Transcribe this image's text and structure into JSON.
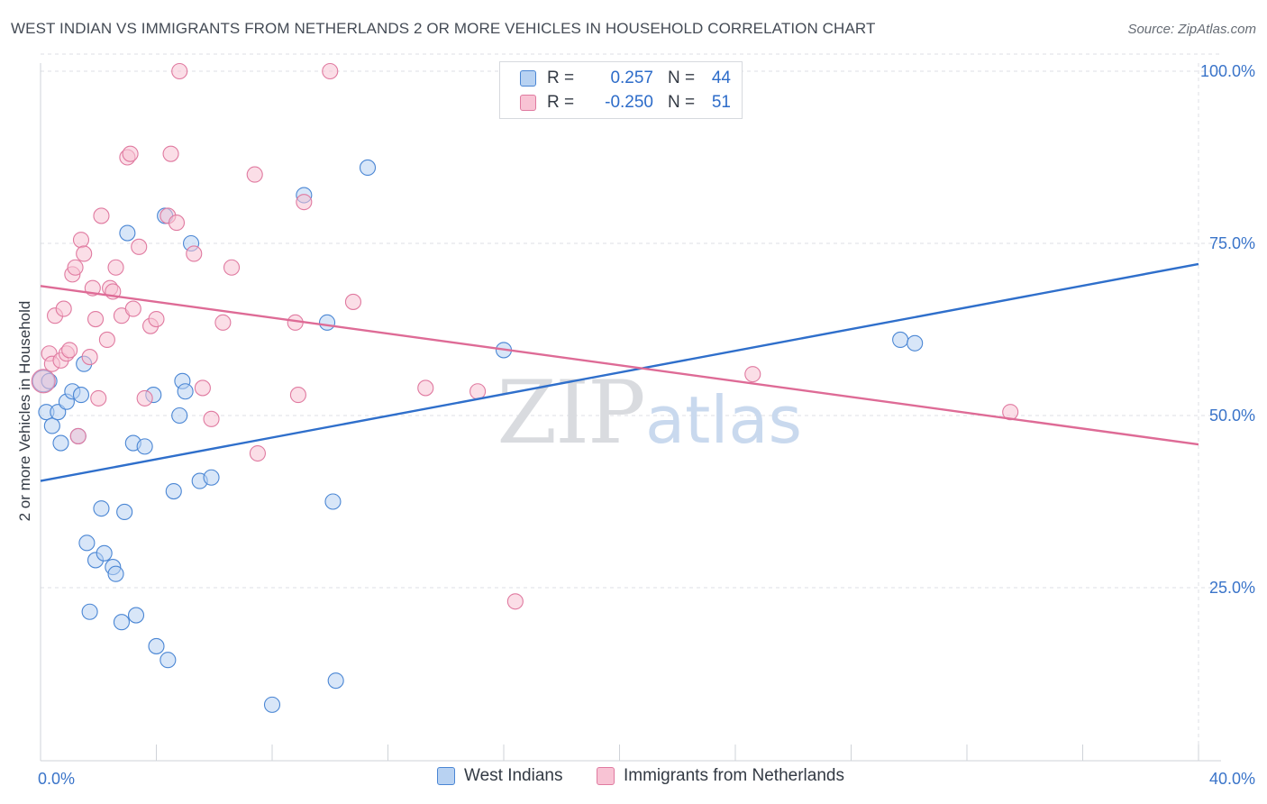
{
  "title": "WEST INDIAN VS IMMIGRANTS FROM NETHERLANDS 2 OR MORE VEHICLES IN HOUSEHOLD CORRELATION CHART",
  "source": "Source: ZipAtlas.com",
  "watermark": {
    "zip": "ZIP",
    "atlas": "atlas"
  },
  "legend": {
    "r_label": "R =",
    "n_label": "N =",
    "series": [
      {
        "r": "0.257",
        "n": "44"
      },
      {
        "r": "-0.250",
        "n": "51"
      }
    ]
  },
  "chart_data": {
    "type": "scatter",
    "title": "WEST INDIAN VS IMMIGRANTS FROM NETHERLANDS 2 OR MORE VEHICLES IN HOUSEHOLD CORRELATION CHART",
    "xlabel": "",
    "ylabel": "2 or more Vehicles in Household",
    "xlim": [
      0,
      40
    ],
    "ylim": [
      0,
      102
    ],
    "x_tick_labels": [
      {
        "value": 0,
        "label": "0.0%"
      },
      {
        "value": 40,
        "label": "40.0%"
      }
    ],
    "y_tick_labels": [
      {
        "value": 25,
        "label": "25.0%"
      },
      {
        "value": 50,
        "label": "50.0%"
      },
      {
        "value": 75,
        "label": "75.0%"
      },
      {
        "value": 100,
        "label": "100.0%"
      }
    ],
    "grid": true,
    "series": [
      {
        "name": "West Indians",
        "color": "#4a86d4",
        "fill": "#b8d2f2",
        "trend": {
          "x": [
            0,
            40
          ],
          "y": [
            40.5,
            72
          ]
        },
        "points": [
          [
            0.2,
            50.5
          ],
          [
            0.4,
            48.5
          ],
          [
            0.6,
            50.5
          ],
          [
            0.7,
            46
          ],
          [
            0.9,
            52
          ],
          [
            1.1,
            53.5
          ],
          [
            1.4,
            53
          ],
          [
            1.5,
            57.5
          ],
          [
            1.6,
            31.5
          ],
          [
            1.7,
            21.5
          ],
          [
            1.9,
            29
          ],
          [
            2.1,
            36.5
          ],
          [
            2.2,
            30
          ],
          [
            2.5,
            28
          ],
          [
            2.6,
            27
          ],
          [
            2.8,
            20
          ],
          [
            2.9,
            36
          ],
          [
            3.2,
            46
          ],
          [
            3.3,
            21
          ],
          [
            3.6,
            45.5
          ],
          [
            3.9,
            53
          ],
          [
            4.0,
            16.5
          ],
          [
            4.3,
            79
          ],
          [
            4.4,
            14.5
          ],
          [
            4.6,
            39
          ],
          [
            4.8,
            50
          ],
          [
            4.9,
            55
          ],
          [
            5.0,
            53.5
          ],
          [
            5.2,
            75
          ],
          [
            5.5,
            40.5
          ],
          [
            5.9,
            41
          ],
          [
            8.0,
            8
          ],
          [
            9.1,
            82
          ],
          [
            9.9,
            63.5
          ],
          [
            10.1,
            37.5
          ],
          [
            10.2,
            11.5
          ],
          [
            11.3,
            86
          ],
          [
            16.0,
            59.5
          ],
          [
            29.7,
            61
          ],
          [
            30.2,
            60.5
          ],
          [
            1.3,
            47
          ],
          [
            0.1,
            55
          ],
          [
            3.0,
            76.5
          ],
          [
            0.3,
            55
          ]
        ]
      },
      {
        "name": "Immigrants from Netherlands",
        "color": "#e07aa0",
        "fill": "#f8c3d4",
        "trend": {
          "x": [
            0,
            40
          ],
          "y": [
            68.8,
            45.8
          ]
        },
        "points": [
          [
            0.1,
            55
          ],
          [
            0.3,
            59
          ],
          [
            0.4,
            57.5
          ],
          [
            0.5,
            64.5
          ],
          [
            0.7,
            58
          ],
          [
            0.8,
            65.5
          ],
          [
            0.9,
            59
          ],
          [
            1.0,
            59.5
          ],
          [
            1.1,
            70.5
          ],
          [
            1.2,
            71.5
          ],
          [
            1.3,
            47
          ],
          [
            1.4,
            75.5
          ],
          [
            1.5,
            73.5
          ],
          [
            1.7,
            58.5
          ],
          [
            1.8,
            68.5
          ],
          [
            1.9,
            64
          ],
          [
            2.0,
            52.5
          ],
          [
            2.1,
            79
          ],
          [
            2.3,
            61
          ],
          [
            2.4,
            68.5
          ],
          [
            2.5,
            68
          ],
          [
            2.6,
            71.5
          ],
          [
            2.8,
            64.5
          ],
          [
            3.0,
            87.5
          ],
          [
            3.1,
            88
          ],
          [
            3.2,
            65.5
          ],
          [
            3.4,
            74.5
          ],
          [
            3.6,
            52.5
          ],
          [
            3.8,
            63
          ],
          [
            4.0,
            64
          ],
          [
            4.4,
            79
          ],
          [
            4.5,
            88
          ],
          [
            4.7,
            78
          ],
          [
            4.8,
            100
          ],
          [
            5.3,
            73.5
          ],
          [
            5.6,
            54
          ],
          [
            5.9,
            49.5
          ],
          [
            6.3,
            63.5
          ],
          [
            6.6,
            71.5
          ],
          [
            7.4,
            85
          ],
          [
            7.5,
            44.5
          ],
          [
            8.8,
            63.5
          ],
          [
            8.9,
            53
          ],
          [
            9.1,
            81
          ],
          [
            10.0,
            100
          ],
          [
            10.8,
            66.5
          ],
          [
            13.3,
            54
          ],
          [
            15.1,
            53.5
          ],
          [
            16.4,
            23
          ],
          [
            24.6,
            56
          ],
          [
            33.5,
            50.5
          ]
        ]
      }
    ]
  }
}
